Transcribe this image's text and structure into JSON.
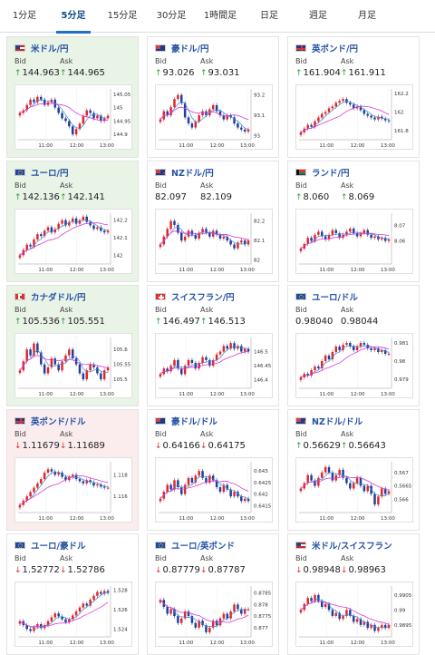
{
  "tabs": [
    "1分足",
    "5分足",
    "15分足",
    "30分足",
    "1時間足",
    "日足",
    "週足",
    "月足"
  ],
  "active_tab": 1,
  "x_ticks": [
    "11:00",
    "12:00",
    "13:00"
  ],
  "colors": {
    "up_arrow": "#2d9a3a",
    "down_arrow": "#d9322c",
    "candle_up": "#e0262b",
    "candle_down": "#1f3f99",
    "ma_fast": "#3a8bd4",
    "ma_slow": "#d63bd6"
  },
  "pairs": [
    {
      "name": "米ドル/円",
      "flag": "us",
      "bid": "144.963",
      "ask": "144.965",
      "bid_dir": "up",
      "ask_dir": "up",
      "bg": "green",
      "chart_data": {
        "type": "candlestick",
        "y_ticks": [
          "145.05",
          "145",
          "144.95",
          "144.9"
        ],
        "ylim": [
          144.88,
          145.07
        ],
        "close": [
          144.98,
          144.99,
          145.01,
          145.03,
          145.02,
          145.04,
          145.03,
          145.01,
          145.02,
          145.03,
          145.0,
          144.98,
          144.96,
          144.95,
          144.93,
          144.9,
          144.92,
          144.94,
          144.97,
          144.99,
          144.98,
          144.96,
          144.97,
          144.95,
          144.96,
          144.97
        ]
      }
    },
    {
      "name": "豪ドル/円",
      "flag": "au",
      "bid": "93.026",
      "ask": "93.031",
      "bid_dir": "up",
      "ask_dir": "up",
      "bg": "white",
      "chart_data": {
        "type": "candlestick",
        "y_ticks": [
          "93.2",
          "93.1",
          "93"
        ],
        "ylim": [
          92.98,
          93.23
        ],
        "close": [
          93.08,
          93.12,
          93.1,
          93.14,
          93.18,
          93.2,
          93.16,
          93.09,
          93.06,
          93.04,
          93.07,
          93.1,
          93.12,
          93.1,
          93.13,
          93.15,
          93.12,
          93.1,
          93.08,
          93.1,
          93.09,
          93.06,
          93.04,
          93.03,
          93.02,
          93.03
        ]
      }
    },
    {
      "name": "英ポンド/円",
      "flag": "uk",
      "bid": "161.904",
      "ask": "161.911",
      "bid_dir": "up",
      "ask_dir": "up",
      "bg": "white",
      "chart_data": {
        "type": "candlestick",
        "y_ticks": [
          "162.2",
          "162",
          "161.8"
        ],
        "ylim": [
          161.7,
          162.25
        ],
        "close": [
          161.78,
          161.82,
          161.86,
          161.84,
          161.9,
          161.94,
          161.98,
          162.0,
          162.04,
          162.06,
          162.1,
          162.12,
          162.14,
          162.1,
          162.08,
          162.04,
          162.06,
          162.02,
          161.98,
          161.96,
          161.94,
          161.92,
          161.95,
          161.93,
          161.91,
          161.9
        ]
      }
    },
    {
      "name": "ユーロ/円",
      "flag": "eu",
      "bid": "142.136",
      "ask": "142.141",
      "bid_dir": "up",
      "ask_dir": "up",
      "bg": "green",
      "chart_data": {
        "type": "candlestick",
        "y_ticks": [
          "142.2",
          "142.1",
          "142"
        ],
        "ylim": [
          141.95,
          142.24
        ],
        "close": [
          142.0,
          142.03,
          142.06,
          142.05,
          142.09,
          142.12,
          142.11,
          142.14,
          142.16,
          142.13,
          142.15,
          142.18,
          142.2,
          142.17,
          142.19,
          142.21,
          142.18,
          142.2,
          142.22,
          142.19,
          142.17,
          142.15,
          142.16,
          142.14,
          142.13,
          142.14
        ]
      }
    },
    {
      "name": "NZドル/円",
      "flag": "nz",
      "bid": "82.097",
      "ask": "82.109",
      "bid_dir": "none",
      "ask_dir": "none",
      "bg": "white",
      "chart_data": {
        "type": "candlestick",
        "y_ticks": [
          "82.2",
          "82.1",
          "82"
        ],
        "ylim": [
          81.98,
          82.24
        ],
        "close": [
          82.08,
          82.12,
          82.16,
          82.2,
          82.18,
          82.14,
          82.1,
          82.12,
          82.15,
          82.13,
          82.11,
          82.14,
          82.16,
          82.14,
          82.12,
          82.15,
          82.13,
          82.11,
          82.12,
          82.1,
          82.08,
          82.06,
          82.09,
          82.1,
          82.08,
          82.1
        ]
      }
    },
    {
      "name": "ランド/円",
      "flag": "za",
      "bid": "8.060",
      "ask": "8.069",
      "bid_dir": "up",
      "ask_dir": "up",
      "bg": "white",
      "chart_data": {
        "type": "candlestick",
        "y_ticks": [
          "8.07",
          "8.06"
        ],
        "ylim": [
          8.045,
          8.078
        ],
        "close": [
          8.055,
          8.058,
          8.062,
          8.06,
          8.064,
          8.066,
          8.063,
          8.061,
          8.064,
          8.067,
          8.065,
          8.062,
          8.064,
          8.066,
          8.068,
          8.065,
          8.063,
          8.065,
          8.067,
          8.064,
          8.062,
          8.063,
          8.061,
          8.062,
          8.06,
          8.061
        ]
      }
    },
    {
      "name": "カナダドル/円",
      "flag": "ca",
      "bid": "105.536",
      "ask": "105.551",
      "bid_dir": "up",
      "ask_dir": "up",
      "bg": "green",
      "chart_data": {
        "type": "candlestick",
        "y_ticks": [
          "105.6",
          "105.55",
          "105.5"
        ],
        "ylim": [
          105.47,
          105.64
        ],
        "close": [
          105.53,
          105.56,
          105.6,
          105.58,
          105.62,
          105.59,
          105.55,
          105.52,
          105.54,
          105.57,
          105.55,
          105.53,
          105.56,
          105.58,
          105.6,
          105.57,
          105.55,
          105.52,
          105.5,
          105.53,
          105.55,
          105.54,
          105.52,
          105.5,
          105.53,
          105.54
        ]
      }
    },
    {
      "name": "スイスフラン/円",
      "flag": "ch",
      "bid": "146.497",
      "ask": "146.513",
      "bid_dir": "up",
      "ask_dir": "up",
      "bg": "white",
      "chart_data": {
        "type": "candlestick",
        "y_ticks": [
          "146.5",
          "146.45",
          "146.4"
        ],
        "ylim": [
          146.37,
          146.55
        ],
        "close": [
          146.42,
          146.44,
          146.43,
          146.45,
          146.47,
          146.44,
          146.42,
          146.45,
          146.47,
          146.46,
          146.44,
          146.46,
          146.48,
          146.47,
          146.45,
          146.47,
          146.49,
          146.5,
          146.52,
          146.51,
          146.53,
          146.51,
          146.52,
          146.5,
          146.51,
          146.5
        ]
      }
    },
    {
      "name": "ユーロ/ドル",
      "flag": "eu",
      "bid": "0.98040",
      "ask": "0.98044",
      "bid_dir": "none",
      "ask_dir": "none",
      "bg": "white",
      "chart_data": {
        "type": "candlestick",
        "y_ticks": [
          "0.981",
          "0.98",
          "0.979"
        ],
        "ylim": [
          0.9785,
          0.9813
        ],
        "close": [
          0.9791,
          0.9793,
          0.9792,
          0.9795,
          0.9797,
          0.9796,
          0.98,
          0.9803,
          0.9801,
          0.9805,
          0.9808,
          0.9806,
          0.9809,
          0.981,
          0.9808,
          0.9806,
          0.9808,
          0.981,
          0.9809,
          0.9807,
          0.9806,
          0.9807,
          0.9805,
          0.9806,
          0.9804,
          0.9804
        ]
      }
    },
    {
      "name": "英ポンド/ドル",
      "flag": "uk",
      "bid": "1.11679",
      "ask": "1.11689",
      "bid_dir": "down",
      "ask_dir": "down",
      "bg": "pink",
      "chart_data": {
        "type": "candlestick",
        "y_ticks": [
          "1.118",
          "1.116"
        ],
        "ylim": [
          1.1145,
          1.1192
        ],
        "close": [
          1.1152,
          1.1156,
          1.116,
          1.1164,
          1.1168,
          1.1172,
          1.1176,
          1.1182,
          1.1185,
          1.1183,
          1.118,
          1.1182,
          1.1178,
          1.1175,
          1.1178,
          1.118,
          1.1176,
          1.1174,
          1.1172,
          1.1175,
          1.1173,
          1.117,
          1.1171,
          1.1169,
          1.1168,
          1.1168
        ]
      }
    },
    {
      "name": "豪ドル/ドル",
      "flag": "au",
      "bid": "0.64166",
      "ask": "0.64175",
      "bid_dir": "down",
      "ask_dir": "down",
      "bg": "white",
      "chart_data": {
        "type": "candlestick",
        "y_ticks": [
          "0.643",
          "0.6425",
          "0.642",
          "0.6415"
        ],
        "ylim": [
          0.6412,
          0.6434
        ],
        "close": [
          0.6418,
          0.6421,
          0.6424,
          0.6422,
          0.6426,
          0.6423,
          0.642,
          0.6424,
          0.6427,
          0.6425,
          0.6428,
          0.643,
          0.6427,
          0.6425,
          0.6428,
          0.6426,
          0.6423,
          0.6421,
          0.6424,
          0.6422,
          0.6419,
          0.6421,
          0.6419,
          0.6417,
          0.6418,
          0.6417
        ]
      }
    },
    {
      "name": "NZドル/ドル",
      "flag": "nz",
      "bid": "0.56629",
      "ask": "0.56643",
      "bid_dir": "up",
      "ask_dir": "up",
      "bg": "white",
      "chart_data": {
        "type": "candlestick",
        "y_ticks": [
          "0.567",
          "0.5665",
          "0.566"
        ],
        "ylim": [
          0.5655,
          0.5674
        ],
        "close": [
          0.5664,
          0.5666,
          0.5669,
          0.5667,
          0.5665,
          0.5668,
          0.567,
          0.5672,
          0.567,
          0.5667,
          0.5669,
          0.5671,
          0.5668,
          0.5666,
          0.5664,
          0.5666,
          0.5668,
          0.5665,
          0.5663,
          0.5665,
          0.5662,
          0.5658,
          0.5661,
          0.5664,
          0.5662,
          0.5663
        ]
      }
    },
    {
      "name": "ユーロ/豪ドル",
      "flag": "eu",
      "bid": "1.52772",
      "ask": "1.52786",
      "bid_dir": "down",
      "ask_dir": "down",
      "bg": "white",
      "chart_data": {
        "type": "candlestick",
        "y_ticks": [
          "1.528",
          "1.526",
          "1.524"
        ],
        "ylim": [
          1.5232,
          1.5284
        ],
        "close": [
          1.5248,
          1.5244,
          1.524,
          1.5238,
          1.5242,
          1.5245,
          1.5241,
          1.5244,
          1.5248,
          1.5252,
          1.5256,
          1.5253,
          1.525,
          1.5247,
          1.525,
          1.5254,
          1.5258,
          1.5262,
          1.5266,
          1.5264,
          1.527,
          1.5274,
          1.5278,
          1.5276,
          1.5279,
          1.5277
        ]
      }
    },
    {
      "name": "ユーロ/英ポンド",
      "flag": "eu",
      "bid": "0.87779",
      "ask": "0.87787",
      "bid_dir": "down",
      "ask_dir": "down",
      "bg": "white",
      "chart_data": {
        "type": "candlestick",
        "y_ticks": [
          "0.8785",
          "0.878",
          "0.8775",
          "0.877"
        ],
        "ylim": [
          0.8766,
          0.8788
        ],
        "close": [
          0.8782,
          0.8779,
          0.8776,
          0.8778,
          0.8775,
          0.8772,
          0.8774,
          0.8777,
          0.8775,
          0.8772,
          0.877,
          0.8773,
          0.8771,
          0.8768,
          0.877,
          0.8773,
          0.8771,
          0.8774,
          0.8776,
          0.8774,
          0.8777,
          0.878,
          0.8778,
          0.8776,
          0.8778,
          0.8778
        ]
      }
    },
    {
      "name": "米ドル/スイスフラン",
      "flag": "us",
      "bid": "0.98948",
      "ask": "0.98963",
      "bid_dir": "down",
      "ask_dir": "down",
      "bg": "white",
      "chart_data": {
        "type": "candlestick",
        "y_ticks": [
          "0.9905",
          "0.99",
          "0.9895"
        ],
        "ylim": [
          0.9891,
          0.9908
        ],
        "close": [
          0.99,
          0.9902,
          0.9904,
          0.9903,
          0.9905,
          0.9903,
          0.9901,
          0.9902,
          0.99,
          0.9898,
          0.9899,
          0.9897,
          0.9898,
          0.99,
          0.9898,
          0.9896,
          0.9897,
          0.9895,
          0.9896,
          0.9894,
          0.9895,
          0.9893,
          0.9894,
          0.9895,
          0.9894,
          0.9895
        ]
      }
    }
  ]
}
